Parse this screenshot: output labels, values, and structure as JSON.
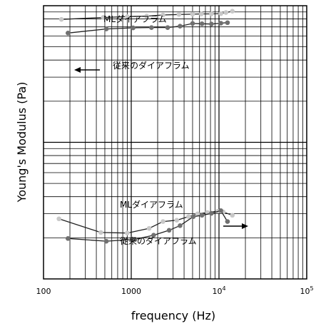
{
  "chart_data": {
    "type": "scatter",
    "x_scale": "log",
    "y_scale": "log",
    "xlabel": "frequency (Hz)",
    "ylabel": "Young's Modulus (Pa)",
    "xlim": [
      100,
      100000
    ],
    "x_ticks": [
      {
        "value": 100,
        "label": "100"
      },
      {
        "value": 1000,
        "label": "1000"
      },
      {
        "value": 10000,
        "label": "10",
        "sup": "4"
      },
      {
        "value": 100000,
        "label": "10",
        "sup": "5"
      }
    ],
    "grid": true,
    "legend": "none",
    "groups": [
      {
        "id": "top",
        "series": [
          {
            "name": "MLダイアフラム",
            "color": "#c8c8c8",
            "points": [
              [
                160,
                0.95
              ],
              [
                480,
                0.957
              ],
              [
                900,
                0.96
              ],
              [
                1500,
                0.962
              ],
              [
                2300,
                0.966
              ],
              [
                3500,
                0.968
              ],
              [
                5000,
                0.969
              ],
              [
                6300,
                0.97
              ],
              [
                8200,
                0.97
              ],
              [
                10500,
                0.971
              ],
              [
                12000,
                0.975
              ],
              [
                14200,
                0.98
              ]
            ]
          },
          {
            "name": "従来のダイアフラム",
            "color": "#707070",
            "points": [
              [
                190,
                0.9
              ],
              [
                520,
                0.915
              ],
              [
                1050,
                0.919
              ],
              [
                1700,
                0.92
              ],
              [
                2600,
                0.92
              ],
              [
                3600,
                0.925
              ],
              [
                5000,
                0.935
              ],
              [
                6400,
                0.934
              ],
              [
                8200,
                0.933
              ],
              [
                10500,
                0.936
              ],
              [
                12500,
                0.938
              ]
            ]
          }
        ],
        "annotation": {
          "text": "←",
          "meaning": "shift-left"
        }
      },
      {
        "id": "bottom",
        "series": [
          {
            "name": "MLダイアフラム",
            "color": "#c8c8c8",
            "points": [
              [
                150,
                0.22
              ],
              [
                450,
                0.17
              ],
              [
                900,
                0.168
              ],
              [
                1600,
                0.185
              ],
              [
                2300,
                0.21
              ],
              [
                3300,
                0.215
              ],
              [
                4500,
                0.228
              ],
              [
                5700,
                0.238
              ],
              [
                7400,
                0.243
              ],
              [
                9700,
                0.248
              ],
              [
                11200,
                0.245
              ],
              [
                14200,
                0.233
              ]
            ]
          },
          {
            "name": "従来のダイアフラム",
            "color": "#707070",
            "points": [
              [
                190,
                0.148
              ],
              [
                520,
                0.138
              ],
              [
                1100,
                0.145
              ],
              [
                1800,
                0.16
              ],
              [
                2700,
                0.178
              ],
              [
                3600,
                0.195
              ],
              [
                5100,
                0.228
              ],
              [
                6400,
                0.233
              ],
              [
                8200,
                0.24
              ],
              [
                10500,
                0.25
              ],
              [
                12500,
                0.21
              ]
            ]
          }
        ],
        "annotation": {
          "text": "→",
          "meaning": "shift-right"
        }
      }
    ],
    "note": "y values are relative positions (0=bottom,1=top of plot) because the y axis has no numeric tick labels"
  }
}
